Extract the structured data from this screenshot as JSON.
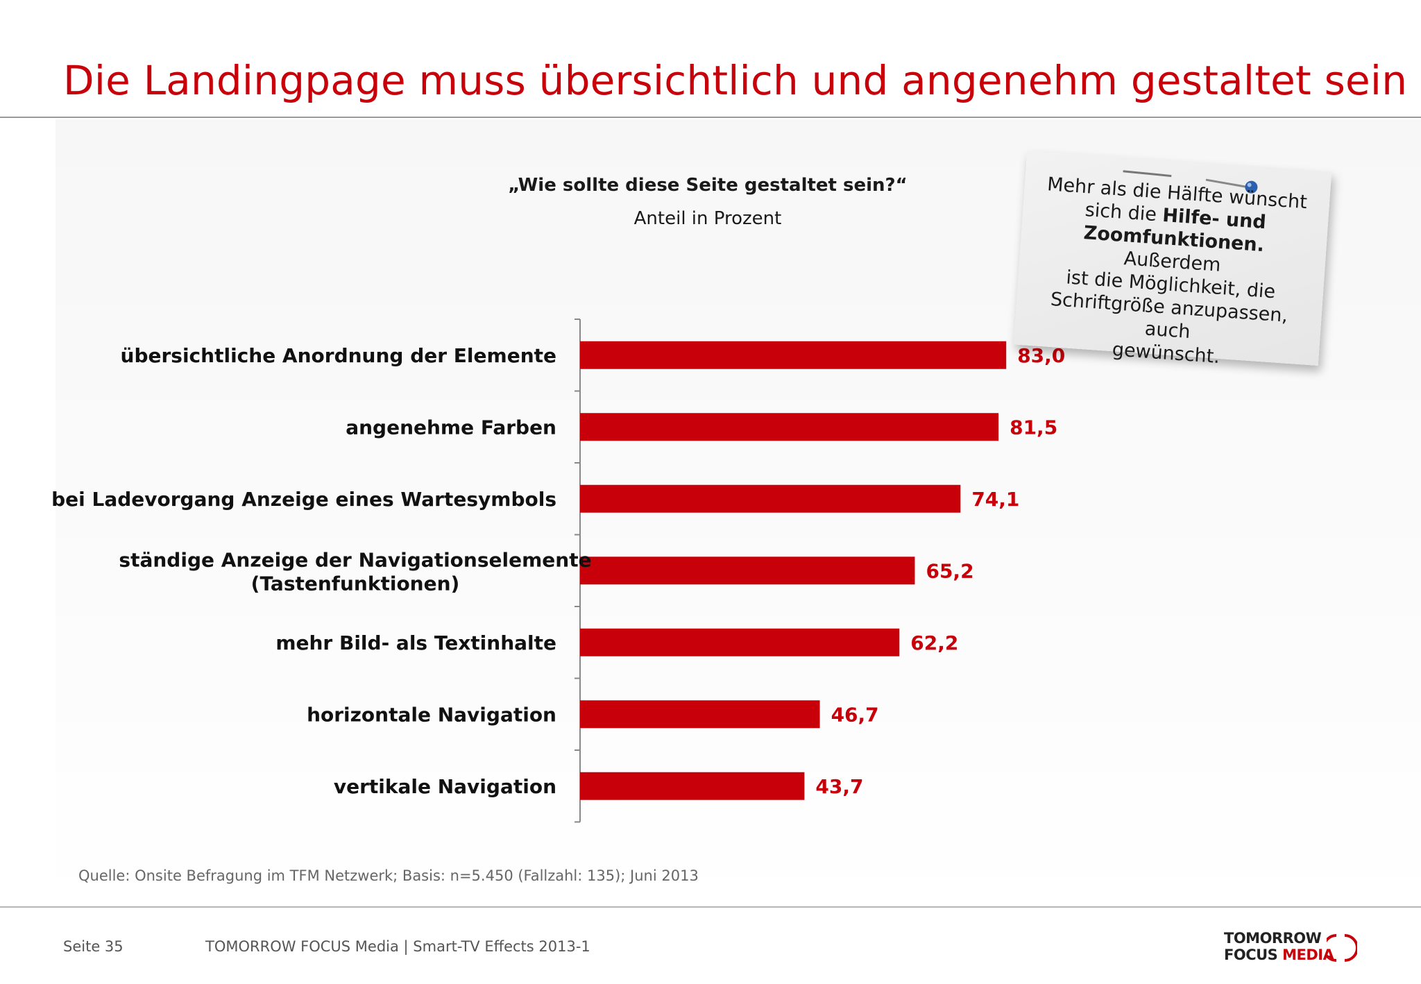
{
  "page": {
    "title": "Die Landingpage muss übersichtlich und angenehm gestaltet sein",
    "question": "„Wie sollte diese Seite gestaltet sein?“",
    "subtitle": "Anteil in Prozent",
    "source": "Quelle: Onsite Befragung im TFM Netzwerk; Basis: n=5.450 (Fallzahl: 135); Juni 2013"
  },
  "note": {
    "line1": "Mehr als die Hälfte wünscht",
    "line2_plain": "sich die ",
    "line2_bold": "Hilfe- und",
    "line3_bold": "Zoomfunktionen.",
    "line3_plain": " Außerdem",
    "line4": "ist die Möglichkeit, die",
    "line5": "Schriftgröße anzupassen, auch",
    "line6": "gewünscht."
  },
  "footer": {
    "page": "Seite 35",
    "center": "TOMORROW FOCUS Media  |  Smart-TV Effects 2013-1",
    "logo_line1": "TOMORROW",
    "logo_line2_a": "FOCUS ",
    "logo_line2_b": "MEDIA"
  },
  "colors": {
    "accent": "#c8000a",
    "text": "#111111"
  },
  "chart_data": {
    "type": "bar",
    "orientation": "horizontal",
    "categories": [
      [
        "übersichtliche Anordnung der Elemente"
      ],
      [
        "angenehme Farben"
      ],
      [
        "bei Ladevorgang Anzeige eines Wartesymbols"
      ],
      [
        "ständige Anzeige der Navigationselemente",
        "(Tastenfunktionen)"
      ],
      [
        "mehr Bild- als Textinhalte"
      ],
      [
        "horizontale Navigation"
      ],
      [
        "vertikale Navigation"
      ]
    ],
    "values": [
      83.0,
      81.5,
      74.1,
      65.2,
      62.2,
      46.7,
      43.7
    ],
    "value_labels": [
      "83,0",
      "81,5",
      "74,1",
      "65,2",
      "62,2",
      "46,7",
      "43,7"
    ],
    "xlim": [
      0,
      100
    ],
    "title": "„Wie sollte diese Seite gestaltet sein?“",
    "xlabel": "",
    "ylabel": "",
    "grid": false,
    "legend": "none"
  }
}
